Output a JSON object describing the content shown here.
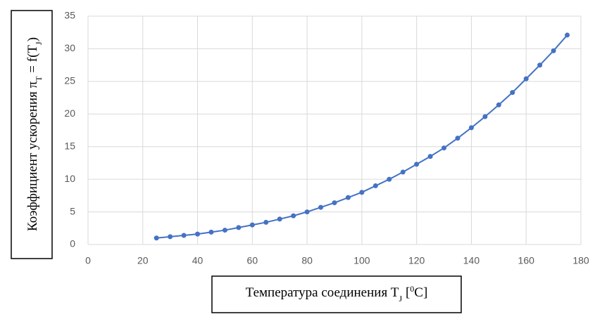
{
  "chart_data": {
    "type": "line",
    "y_label": [
      "Коэффициент ускорения π",
      "T",
      " = f(T",
      "J",
      ")"
    ],
    "x_label": [
      "Температура соединения T",
      "J",
      " [",
      "0",
      "C]"
    ],
    "x": [
      25,
      30,
      35,
      40,
      45,
      50,
      55,
      60,
      65,
      70,
      75,
      80,
      85,
      90,
      95,
      100,
      105,
      110,
      115,
      120,
      125,
      130,
      135,
      140,
      145,
      150,
      155,
      160,
      165,
      170,
      175
    ],
    "values": [
      1.0,
      1.2,
      1.4,
      1.6,
      1.9,
      2.2,
      2.6,
      3.0,
      3.4,
      3.9,
      4.4,
      5.0,
      5.7,
      6.4,
      7.2,
      8.0,
      9.0,
      10.0,
      11.1,
      12.3,
      13.5,
      14.8,
      16.3,
      17.9,
      19.6,
      21.4,
      23.3,
      25.4,
      27.5,
      29.7,
      32.1
    ],
    "color": "#4472c4",
    "xlim": [
      0,
      180
    ],
    "xticks": [
      0,
      20,
      40,
      60,
      80,
      100,
      120,
      140,
      160,
      180
    ],
    "ylim": [
      0,
      35
    ],
    "yticks": [
      0,
      5,
      10,
      15,
      20,
      25,
      30,
      35
    ],
    "grid": true
  }
}
